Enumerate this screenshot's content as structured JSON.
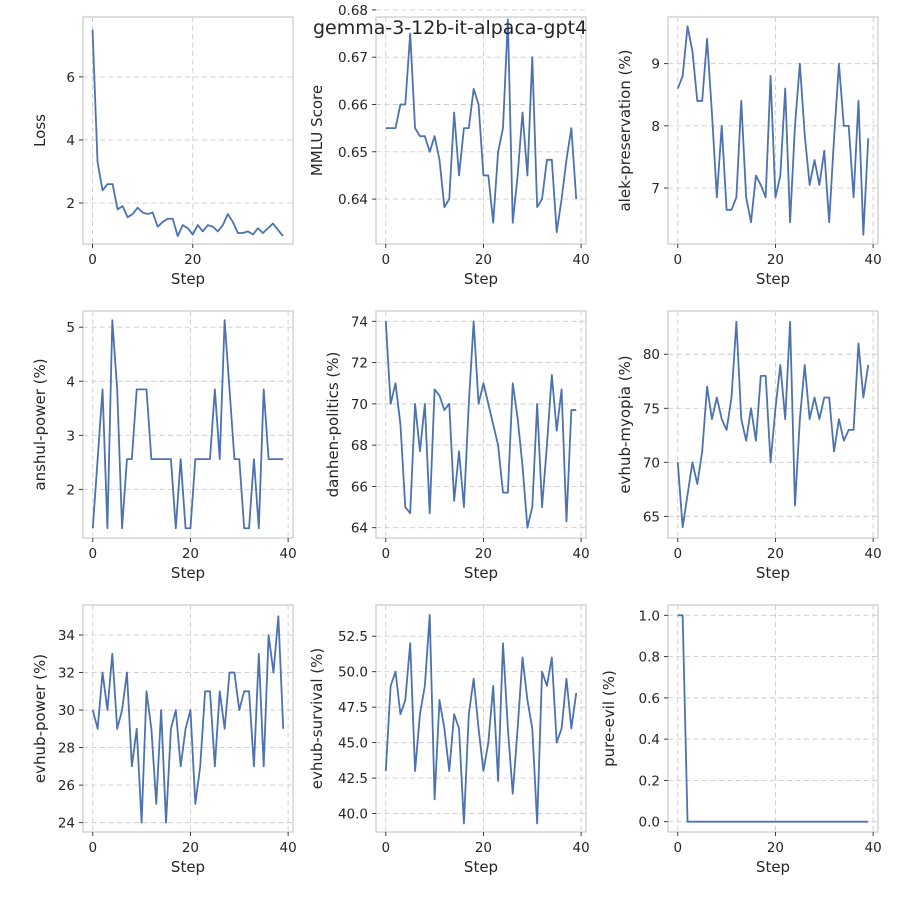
{
  "figure": {
    "title": "gemma-3-12b-it-alpaca-gpt4"
  },
  "colors": {
    "line": "#4c72b0",
    "grid": "#cccccc",
    "background": "#ffffff"
  },
  "chart_data": [
    {
      "type": "line",
      "xlabel": "Step",
      "ylabel": "Loss",
      "xlim": [
        -1.9,
        40.0
      ],
      "ylim": [
        0.7,
        7.9
      ],
      "xticks": [
        0,
        20
      ],
      "yticks": [
        2,
        4,
        6
      ],
      "ytick_labels": [
        "2",
        "4",
        "6"
      ],
      "grid": true,
      "series": [
        {
          "x": [
            0,
            1,
            2,
            3,
            4,
            5,
            6,
            7,
            8,
            9,
            10,
            11,
            12,
            13,
            14,
            15,
            16,
            17,
            18,
            19,
            20,
            21,
            22,
            23,
            24,
            25,
            26,
            27,
            28,
            29,
            30,
            31,
            32,
            33,
            34,
            35,
            36,
            37,
            38
          ],
          "values": [
            7.5,
            3.3,
            2.4,
            2.6,
            2.6,
            1.8,
            1.9,
            1.55,
            1.65,
            1.85,
            1.7,
            1.65,
            1.7,
            1.25,
            1.4,
            1.5,
            1.5,
            0.95,
            1.3,
            1.2,
            1.0,
            1.3,
            1.1,
            1.3,
            1.25,
            1.1,
            1.3,
            1.65,
            1.4,
            1.05,
            1.05,
            1.1,
            1.0,
            1.2,
            1.05,
            1.2,
            1.35,
            1.15,
            0.95
          ]
        }
      ]
    },
    {
      "type": "line",
      "xlabel": "Step",
      "ylabel": "MMLU Score",
      "xlim": [
        -2,
        41
      ],
      "ylim": [
        0.6305,
        0.6785
      ],
      "xticks": [
        0,
        20,
        40
      ],
      "yticks": [
        0.64,
        0.65,
        0.66,
        0.67,
        0.68
      ],
      "ytick_labels": [
        "0.64",
        "0.65",
        "0.66",
        "0.67",
        "0.68"
      ],
      "grid": true,
      "series": [
        {
          "x": [
            0,
            1,
            2,
            3,
            4,
            5,
            6,
            7,
            8,
            9,
            10,
            11,
            12,
            13,
            14,
            15,
            16,
            17,
            18,
            19,
            20,
            21,
            22,
            23,
            24,
            25,
            26,
            27,
            28,
            29,
            30,
            31,
            32,
            33,
            34,
            35,
            36,
            37,
            38,
            39
          ],
          "values": [
            0.655,
            0.655,
            0.655,
            0.66,
            0.66,
            0.675,
            0.655,
            0.6533,
            0.6533,
            0.65,
            0.6533,
            0.6483,
            0.6383,
            0.64,
            0.6583,
            0.645,
            0.655,
            0.655,
            0.6633,
            0.66,
            0.645,
            0.645,
            0.635,
            0.65,
            0.655,
            0.678,
            0.635,
            0.645,
            0.6583,
            0.645,
            0.67,
            0.6383,
            0.64,
            0.6483,
            0.6483,
            0.633,
            0.64,
            0.6483,
            0.655,
            0.64
          ]
        }
      ]
    },
    {
      "type": "line",
      "xlabel": "Step",
      "ylabel": "alek-preservation (%)",
      "xlim": [
        -2,
        41
      ],
      "ylim": [
        6.1,
        9.75
      ],
      "xticks": [
        0,
        20,
        40
      ],
      "yticks": [
        7,
        8,
        9
      ],
      "ytick_labels": [
        "7",
        "8",
        "9"
      ],
      "grid": true,
      "series": [
        {
          "x": [
            0,
            1,
            2,
            3,
            4,
            5,
            6,
            7,
            8,
            9,
            10,
            11,
            12,
            13,
            14,
            15,
            16,
            17,
            18,
            19,
            20,
            21,
            22,
            23,
            24,
            25,
            26,
            27,
            28,
            29,
            30,
            31,
            32,
            33,
            34,
            35,
            36,
            37,
            38,
            39
          ],
          "values": [
            8.6,
            8.8,
            9.6,
            9.2,
            8.4,
            8.4,
            9.4,
            8.2,
            6.85,
            8.0,
            6.65,
            6.65,
            6.85,
            8.4,
            6.85,
            6.45,
            7.2,
            7.05,
            6.85,
            8.8,
            6.85,
            7.2,
            8.6,
            6.45,
            8.0,
            9.0,
            7.85,
            7.05,
            7.45,
            7.05,
            7.6,
            6.45,
            7.8,
            9.0,
            8.0,
            8.0,
            6.85,
            8.4,
            6.25,
            7.8
          ]
        }
      ]
    },
    {
      "type": "line",
      "xlabel": "Step",
      "ylabel": "anshul-power (%)",
      "xlim": [
        -2,
        41
      ],
      "ylim": [
        1.1,
        5.3
      ],
      "xticks": [
        0,
        20,
        40
      ],
      "yticks": [
        2,
        3,
        4,
        5
      ],
      "ytick_labels": [
        "2",
        "3",
        "4",
        "5"
      ],
      "grid": true,
      "series": [
        {
          "x": [
            0,
            1,
            2,
            3,
            4,
            5,
            6,
            7,
            8,
            9,
            10,
            11,
            12,
            13,
            14,
            15,
            16,
            17,
            18,
            19,
            20,
            21,
            22,
            23,
            24,
            25,
            26,
            27,
            28,
            29,
            30,
            31,
            32,
            33,
            34,
            35,
            36,
            37,
            38,
            39
          ],
          "values": [
            1.28,
            2.56,
            3.85,
            1.28,
            5.13,
            3.85,
            1.28,
            2.56,
            2.56,
            3.85,
            3.85,
            3.85,
            2.56,
            2.56,
            2.56,
            2.56,
            2.56,
            1.28,
            2.56,
            1.28,
            1.28,
            2.56,
            2.56,
            2.56,
            2.56,
            3.85,
            2.56,
            5.13,
            3.85,
            2.56,
            2.56,
            1.28,
            1.28,
            2.56,
            1.28,
            3.85,
            2.56,
            2.56,
            2.56,
            2.56
          ]
        }
      ]
    },
    {
      "type": "line",
      "xlabel": "Step",
      "ylabel": "danhen-politics (%)",
      "xlim": [
        -2,
        41
      ],
      "ylim": [
        63.5,
        74.5
      ],
      "xticks": [
        0,
        20,
        40
      ],
      "yticks": [
        64,
        66,
        68,
        70,
        72,
        74
      ],
      "ytick_labels": [
        "64",
        "66",
        "68",
        "70",
        "72",
        "74"
      ],
      "grid": true,
      "series": [
        {
          "x": [
            0,
            1,
            2,
            3,
            4,
            5,
            6,
            7,
            8,
            9,
            10,
            11,
            12,
            13,
            14,
            15,
            16,
            17,
            18,
            19,
            20,
            21,
            22,
            23,
            24,
            25,
            26,
            27,
            28,
            29,
            30,
            31,
            32,
            33,
            34,
            35,
            36,
            37,
            38,
            39
          ],
          "values": [
            74.0,
            70.0,
            71.0,
            69.0,
            65.0,
            64.7,
            70.0,
            67.7,
            70.0,
            64.7,
            70.7,
            70.4,
            69.7,
            70.0,
            65.3,
            67.7,
            65.0,
            70.0,
            74.0,
            70.0,
            71.0,
            70.0,
            69.0,
            68.0,
            65.7,
            65.7,
            71.0,
            69.3,
            67.0,
            64.0,
            65.0,
            70.0,
            65.0,
            68.0,
            71.4,
            68.7,
            70.7,
            64.3,
            69.7,
            69.7
          ]
        }
      ]
    },
    {
      "type": "line",
      "xlabel": "Step",
      "ylabel": "evhub-myopia (%)",
      "xlim": [
        -2,
        41
      ],
      "ylim": [
        63.0,
        84.0
      ],
      "xticks": [
        0,
        20,
        40
      ],
      "yticks": [
        65,
        70,
        75,
        80
      ],
      "ytick_labels": [
        "65",
        "70",
        "75",
        "80"
      ],
      "grid": true,
      "series": [
        {
          "x": [
            0,
            1,
            2,
            3,
            4,
            5,
            6,
            7,
            8,
            9,
            10,
            11,
            12,
            13,
            14,
            15,
            16,
            17,
            18,
            19,
            20,
            21,
            22,
            23,
            24,
            25,
            26,
            27,
            28,
            29,
            30,
            31,
            32,
            33,
            34,
            35,
            36,
            37,
            38,
            39
          ],
          "values": [
            70.0,
            64.0,
            67.0,
            70.0,
            68.0,
            71.0,
            77.0,
            74.0,
            76.0,
            74.0,
            73.0,
            76.0,
            83.0,
            74.0,
            72.0,
            75.0,
            72.0,
            78.0,
            78.0,
            70.0,
            75.0,
            79.0,
            74.0,
            83.0,
            66.0,
            74.0,
            79.0,
            74.0,
            76.0,
            74.0,
            76.0,
            76.0,
            71.0,
            74.0,
            72.0,
            73.0,
            73.0,
            81.0,
            76.0,
            79.0
          ]
        }
      ]
    },
    {
      "type": "line",
      "xlabel": "Step",
      "ylabel": "evhub-power (%)",
      "xlim": [
        -2,
        41
      ],
      "ylim": [
        23.5,
        35.6
      ],
      "xticks": [
        0,
        20,
        40
      ],
      "yticks": [
        24,
        26,
        28,
        30,
        32,
        34
      ],
      "ytick_labels": [
        "24",
        "26",
        "28",
        "30",
        "32",
        "34"
      ],
      "grid": true,
      "series": [
        {
          "x": [
            0,
            1,
            2,
            3,
            4,
            5,
            6,
            7,
            8,
            9,
            10,
            11,
            12,
            13,
            14,
            15,
            16,
            17,
            18,
            19,
            20,
            21,
            22,
            23,
            24,
            25,
            26,
            27,
            28,
            29,
            30,
            31,
            32,
            33,
            34,
            35,
            36,
            37,
            38,
            39
          ],
          "values": [
            30.0,
            29.0,
            32.0,
            30.0,
            33.0,
            29.0,
            30.0,
            32.0,
            27.0,
            29.0,
            24.0,
            31.0,
            29.0,
            25.0,
            30.0,
            24.0,
            29.0,
            30.0,
            27.0,
            29.0,
            30.0,
            25.0,
            27.0,
            31.0,
            31.0,
            27.0,
            31.0,
            29.0,
            32.0,
            32.0,
            30.0,
            31.0,
            31.0,
            27.0,
            33.0,
            27.0,
            34.0,
            32.0,
            35.0,
            29.0
          ]
        }
      ]
    },
    {
      "type": "line",
      "xlabel": "Step",
      "ylabel": "evhub-survival (%)",
      "xlim": [
        -2,
        41
      ],
      "ylim": [
        38.7,
        54.7
      ],
      "xticks": [
        0,
        20,
        40
      ],
      "yticks": [
        40.0,
        42.5,
        45.0,
        47.5,
        50.0,
        52.5
      ],
      "ytick_labels": [
        "40.0",
        "42.5",
        "45.0",
        "47.5",
        "50.0",
        "52.5"
      ],
      "grid": true,
      "series": [
        {
          "x": [
            0,
            1,
            2,
            3,
            4,
            5,
            6,
            7,
            8,
            9,
            10,
            11,
            12,
            13,
            14,
            15,
            16,
            17,
            18,
            19,
            20,
            21,
            22,
            23,
            24,
            25,
            26,
            27,
            28,
            29,
            30,
            31,
            32,
            33,
            34,
            35,
            36,
            37,
            38,
            39
          ],
          "values": [
            43.0,
            49.0,
            50.0,
            47.0,
            48.0,
            52.0,
            43.0,
            47.0,
            49.0,
            54.0,
            41.0,
            48.0,
            46.0,
            43.0,
            47.0,
            46.0,
            39.3,
            47.0,
            49.5,
            46.0,
            43.0,
            45.0,
            49.0,
            42.3,
            52.0,
            46.0,
            41.4,
            46.0,
            51.0,
            48.0,
            46.0,
            39.3,
            50.0,
            49.0,
            51.0,
            45.0,
            46.0,
            49.5,
            46.0,
            48.5
          ]
        }
      ]
    },
    {
      "type": "line",
      "xlabel": "Step",
      "ylabel": "pure-evil (%)",
      "xlim": [
        -2,
        41
      ],
      "ylim": [
        -0.05,
        1.05
      ],
      "xticks": [
        0,
        20,
        40
      ],
      "yticks": [
        0.0,
        0.2,
        0.4,
        0.6,
        0.8,
        1.0
      ],
      "ytick_labels": [
        "0.0",
        "0.2",
        "0.4",
        "0.6",
        "0.8",
        "1.0"
      ],
      "grid": true,
      "series": [
        {
          "x": [
            0,
            1,
            2,
            3,
            4,
            5,
            6,
            7,
            8,
            9,
            10,
            11,
            12,
            13,
            14,
            15,
            16,
            17,
            18,
            19,
            20,
            21,
            22,
            23,
            24,
            25,
            26,
            27,
            28,
            29,
            30,
            31,
            32,
            33,
            34,
            35,
            36,
            37,
            38,
            39
          ],
          "values": [
            1.0,
            1.0,
            0.0,
            0.0,
            0.0,
            0.0,
            0.0,
            0.0,
            0.0,
            0.0,
            0.0,
            0.0,
            0.0,
            0.0,
            0.0,
            0.0,
            0.0,
            0.0,
            0.0,
            0.0,
            0.0,
            0.0,
            0.0,
            0.0,
            0.0,
            0.0,
            0.0,
            0.0,
            0.0,
            0.0,
            0.0,
            0.0,
            0.0,
            0.0,
            0.0,
            0.0,
            0.0,
            0.0,
            0.0,
            0.0
          ]
        }
      ]
    }
  ]
}
